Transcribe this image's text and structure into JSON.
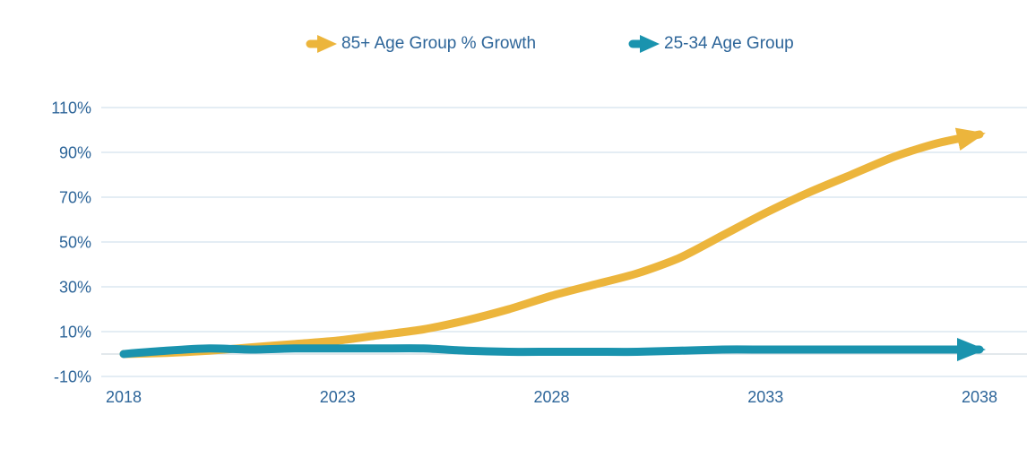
{
  "legend": [
    {
      "label": "85+ Age Group % Growth",
      "color": "#ecb53c"
    },
    {
      "label": "25-34 Age Group",
      "color": "#1a93ae"
    }
  ],
  "chart_data": {
    "type": "line",
    "title": "",
    "xlabel": "",
    "ylabel": "",
    "x": [
      2018,
      2019,
      2020,
      2021,
      2022,
      2023,
      2024,
      2025,
      2026,
      2027,
      2028,
      2029,
      2030,
      2031,
      2032,
      2033,
      2034,
      2035,
      2036,
      2037,
      2038
    ],
    "series": [
      {
        "name": "85+ Age Group % Growth",
        "color": "#ecb53c",
        "values": [
          0,
          0.5,
          1.5,
          3,
          4.5,
          6,
          8.5,
          11,
          15,
          20,
          26,
          31,
          36,
          43,
          53,
          63,
          72,
          80,
          88,
          94,
          98
        ]
      },
      {
        "name": "25-34 Age Group",
        "color": "#1a93ae",
        "values": [
          0,
          1.5,
          2.5,
          2,
          2.5,
          2.5,
          2.5,
          2.5,
          1.5,
          1,
          1,
          1,
          1,
          1.5,
          2,
          2,
          2,
          2,
          2,
          2,
          2
        ]
      }
    ],
    "x_ticks": [
      2018,
      2023,
      2028,
      2033,
      2038
    ],
    "x_tick_labels": [
      "2018",
      "2023",
      "2028",
      "2033",
      "2038"
    ],
    "y_ticks": [
      110,
      90,
      70,
      50,
      30,
      10,
      -10
    ],
    "y_tick_labels": [
      "110%",
      "90%",
      "70%",
      "50%",
      "30%",
      "10%",
      "-10%"
    ],
    "xlim": [
      2018,
      2038
    ],
    "ylim": [
      -10,
      110
    ],
    "grid": true,
    "zero_axis": true,
    "legend_position": "top",
    "line_end_marker": "arrow",
    "colors": {
      "background": "#ffffff",
      "gridline": "#dce7f1",
      "zero_axis": "#d9e0e6",
      "tick_text": "#2d6599",
      "legend_text": "#2d6599"
    }
  }
}
